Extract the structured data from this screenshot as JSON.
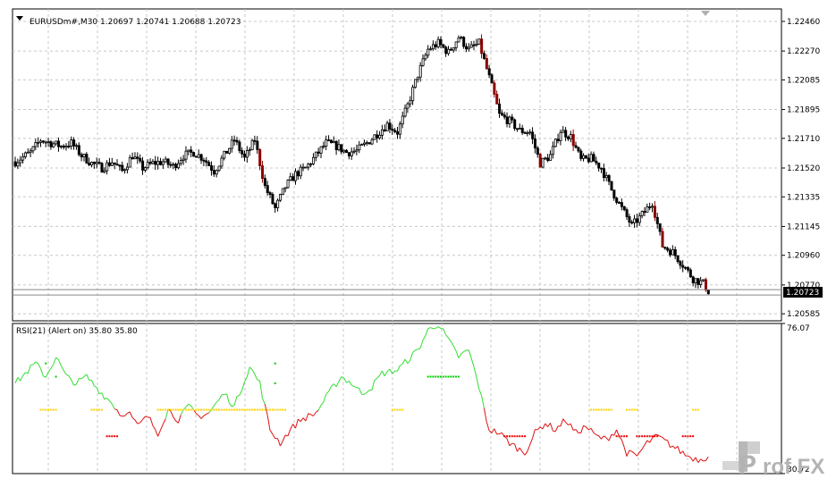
{
  "main_header": "EURUSDm#,M30  1.20697 1.20741 1.20688 1.20723",
  "rsi_header": "RSI(21) (Alert on) 35.80 35.80",
  "current_price_label": "1.20723",
  "watermark": {
    "left": "P",
    "right": "rof FX"
  },
  "colors": {
    "background": "#ffffff",
    "grid": "#c8c8c8",
    "bull_candle": "#ffffff",
    "bear_candle": "#000000",
    "down_highlight": "#8b0000",
    "rsi_up": "#33dd33",
    "rsi_down": "#dd1111",
    "dot_green": "#00cc00",
    "dot_yellow": "#ffd200",
    "dot_red": "#ee0000",
    "price_box": "#000000",
    "watermark": "#b3b3b3"
  },
  "chart_data": [
    {
      "type": "candlestick",
      "title": "EURUSDm#,M30",
      "ylim": [
        1.2054,
        1.2254
      ],
      "y_ticks": [
        "1.22460",
        "1.22270",
        "1.22085",
        "1.21895",
        "1.21710",
        "1.21520",
        "1.21335",
        "1.21145",
        "1.20960",
        "1.20770",
        "1.20585"
      ],
      "current_price": 1.20723,
      "anchors": [
        [
          0,
          1.2156
        ],
        [
          6,
          1.2162
        ],
        [
          10,
          1.217
        ],
        [
          14,
          1.2168
        ],
        [
          18,
          1.2166
        ],
        [
          22,
          1.2168
        ],
        [
          26,
          1.216
        ],
        [
          30,
          1.2155
        ],
        [
          34,
          1.2152
        ],
        [
          38,
          1.2156
        ],
        [
          42,
          1.215
        ],
        [
          46,
          1.216
        ],
        [
          50,
          1.2152
        ],
        [
          54,
          1.2155
        ],
        [
          58,
          1.2156
        ],
        [
          62,
          1.2153
        ],
        [
          66,
          1.216
        ],
        [
          70,
          1.2162
        ],
        [
          74,
          1.2158
        ],
        [
          78,
          1.215
        ],
        [
          82,
          1.216
        ],
        [
          86,
          1.217
        ],
        [
          90,
          1.2158
        ],
        [
          94,
          1.217
        ],
        [
          98,
          1.214
        ],
        [
          102,
          1.2126
        ],
        [
          106,
          1.214
        ],
        [
          110,
          1.2148
        ],
        [
          114,
          1.2152
        ],
        [
          118,
          1.216
        ],
        [
          122,
          1.2168
        ],
        [
          126,
          1.2166
        ],
        [
          130,
          1.2162
        ],
        [
          134,
          1.2163
        ],
        [
          138,
          1.2168
        ],
        [
          142,
          1.2174
        ],
        [
          146,
          1.218
        ],
        [
          150,
          1.2175
        ],
        [
          154,
          1.2192
        ],
        [
          158,
          1.2212
        ],
        [
          162,
          1.2228
        ],
        [
          166,
          1.2232
        ],
        [
          170,
          1.2226
        ],
        [
          174,
          1.2236
        ],
        [
          178,
          1.2228
        ],
        [
          182,
          1.2232
        ],
        [
          186,
          1.221
        ],
        [
          190,
          1.2186
        ],
        [
          194,
          1.2182
        ],
        [
          198,
          1.2176
        ],
        [
          202,
          1.2175
        ],
        [
          206,
          1.2155
        ],
        [
          210,
          1.216
        ],
        [
          214,
          1.2176
        ],
        [
          218,
          1.2172
        ],
        [
          222,
          1.2157
        ],
        [
          226,
          1.2158
        ],
        [
          230,
          1.2152
        ],
        [
          234,
          1.2138
        ],
        [
          238,
          1.2126
        ],
        [
          242,
          1.2115
        ],
        [
          246,
          1.2122
        ],
        [
          250,
          1.213
        ],
        [
          254,
          1.2102
        ],
        [
          258,
          1.2098
        ],
        [
          262,
          1.209
        ],
        [
          266,
          1.2081
        ],
        [
          270,
          1.2078
        ],
        [
          272,
          1.2073
        ]
      ]
    },
    {
      "type": "line",
      "title": "RSI(21) (Alert on)",
      "ylim": [
        30.72,
        76.07
      ],
      "y_ticks": [
        "76.07",
        "30.72"
      ],
      "value": 35.8,
      "down_threshold": 50,
      "anchors": [
        [
          0,
          58
        ],
        [
          8,
          64
        ],
        [
          12,
          60
        ],
        [
          16,
          66
        ],
        [
          20,
          60
        ],
        [
          24,
          58
        ],
        [
          28,
          60
        ],
        [
          34,
          55
        ],
        [
          38,
          52
        ],
        [
          42,
          48
        ],
        [
          44,
          50
        ],
        [
          48,
          45
        ],
        [
          52,
          48
        ],
        [
          56,
          43
        ],
        [
          60,
          50
        ],
        [
          64,
          47
        ],
        [
          68,
          51
        ],
        [
          72,
          48
        ],
        [
          76,
          49
        ],
        [
          82,
          55
        ],
        [
          86,
          51
        ],
        [
          92,
          63
        ],
        [
          96,
          58
        ],
        [
          98,
          51
        ],
        [
          100,
          44
        ],
        [
          104,
          40
        ],
        [
          108,
          44
        ],
        [
          112,
          47
        ],
        [
          118,
          49
        ],
        [
          124,
          56
        ],
        [
          128,
          60
        ],
        [
          132,
          58
        ],
        [
          136,
          55
        ],
        [
          140,
          57
        ],
        [
          144,
          61
        ],
        [
          150,
          62
        ],
        [
          158,
          68
        ],
        [
          162,
          74
        ],
        [
          166,
          76
        ],
        [
          170,
          71
        ],
        [
          174,
          66
        ],
        [
          178,
          68
        ],
        [
          182,
          57
        ],
        [
          184,
          50
        ],
        [
          186,
          44
        ],
        [
          190,
          43
        ],
        [
          194,
          40
        ],
        [
          198,
          38
        ],
        [
          200,
          37
        ],
        [
          204,
          43
        ],
        [
          208,
          46
        ],
        [
          212,
          44
        ],
        [
          216,
          47
        ],
        [
          220,
          43
        ],
        [
          224,
          45
        ],
        [
          228,
          42
        ],
        [
          232,
          41
        ],
        [
          236,
          44
        ],
        [
          240,
          37
        ],
        [
          244,
          36
        ],
        [
          248,
          40
        ],
        [
          252,
          42
        ],
        [
          256,
          40
        ],
        [
          260,
          38
        ],
        [
          264,
          36
        ],
        [
          268,
          35
        ],
        [
          272,
          35.8
        ]
      ]
    }
  ]
}
